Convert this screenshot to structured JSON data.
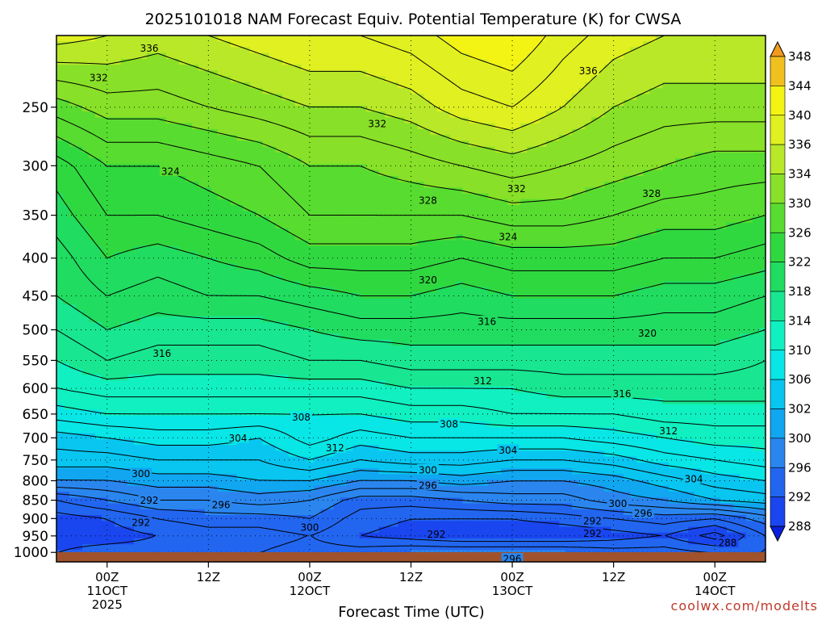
{
  "chart_data": {
    "type": "heatmap",
    "title": "2025101018 NAM Forecast Equiv. Potential Temperature (K) for CWSA",
    "xlabel": "Forecast Time (UTC)",
    "ylabel": "",
    "credit": "coolwx.com/modelts",
    "x_ticks": [
      {
        "hour": 6,
        "line1": "00Z",
        "line2": "11OCT",
        "line3": "2025"
      },
      {
        "hour": 18,
        "line1": "12Z",
        "line2": "",
        "line3": ""
      },
      {
        "hour": 30,
        "line1": "00Z",
        "line2": "12OCT",
        "line3": ""
      },
      {
        "hour": 42,
        "line1": "12Z",
        "line2": "",
        "line3": ""
      },
      {
        "hour": 54,
        "line1": "00Z",
        "line2": "13OCT",
        "line3": ""
      },
      {
        "hour": 66,
        "line1": "12Z",
        "line2": "",
        "line3": ""
      },
      {
        "hour": 78,
        "line1": "00Z",
        "line2": "14OCT",
        "line3": ""
      }
    ],
    "xlim": [
      0,
      84
    ],
    "y_ticks": [
      {
        "p": 250,
        "label": "250"
      },
      {
        "p": 300,
        "label": "300"
      },
      {
        "p": 350,
        "label": "350"
      },
      {
        "p": 400,
        "label": "400"
      },
      {
        "p": 450,
        "label": "450"
      },
      {
        "p": 500,
        "label": "500"
      },
      {
        "p": 550,
        "label": "550"
      },
      {
        "p": 600,
        "label": "600"
      },
      {
        "p": 650,
        "label": "650"
      },
      {
        "p": 700,
        "label": "700"
      },
      {
        "p": 750,
        "label": "750"
      },
      {
        "p": 800,
        "label": "800"
      },
      {
        "p": 850,
        "label": "850"
      },
      {
        "p": 900,
        "label": "900"
      },
      {
        "p": 950,
        "label": "950"
      },
      {
        "p": 1000,
        "label": "1000"
      }
    ],
    "ylim": [
      200,
      1030
    ],
    "y_scale": "log-pressure",
    "grid": "dotted",
    "colorbar": {
      "levels": [
        288,
        292,
        296,
        300,
        302,
        306,
        310,
        314,
        318,
        322,
        326,
        330,
        334,
        336,
        340,
        344,
        348
      ],
      "colors": [
        "#0a1ee0",
        "#1a46ef",
        "#2266f0",
        "#2a86ee",
        "#10a6f0",
        "#08c6f0",
        "#08e6e6",
        "#10f0c0",
        "#18e690",
        "#20dc60",
        "#30d840",
        "#58dc30",
        "#88e028",
        "#b8e828",
        "#e0f020",
        "#f4f414",
        "#f0c020",
        "#f09a20"
      ]
    },
    "profile_pressures": [
      200,
      250,
      300,
      350,
      400,
      450,
      500,
      550,
      600,
      650,
      700,
      750,
      800,
      850,
      900,
      950,
      1000
    ],
    "profile_hours": [
      0,
      6,
      12,
      18,
      24,
      30,
      36,
      42,
      48,
      54,
      60,
      66,
      72,
      78,
      84
    ],
    "theta_e": [
      [
        337,
        336,
        335,
        336,
        337,
        338,
        338,
        339,
        341,
        342,
        339,
        337,
        336,
        336,
        336
      ],
      [
        329,
        331,
        331,
        332,
        333,
        334,
        334,
        335,
        337,
        338,
        336,
        334,
        333,
        333,
        333
      ],
      [
        323,
        326,
        326,
        327,
        328,
        330,
        330,
        331,
        332,
        333,
        332,
        331,
        330,
        329,
        329
      ],
      [
        321,
        324,
        324,
        325,
        326,
        328,
        328,
        328,
        328,
        329,
        329,
        328,
        327,
        327,
        326
      ],
      [
        319,
        322,
        321,
        322,
        323,
        325,
        325,
        325,
        324,
        325,
        325,
        325,
        324,
        324,
        323
      ],
      [
        318,
        320,
        319,
        320,
        320,
        321,
        322,
        322,
        321,
        322,
        322,
        322,
        321,
        321,
        320
      ],
      [
        316,
        318,
        317,
        317,
        317,
        318,
        319,
        319,
        319,
        319,
        319,
        319,
        319,
        319,
        318
      ],
      [
        314,
        316,
        315,
        315,
        315,
        316,
        316,
        317,
        317,
        317,
        317,
        317,
        317,
        317,
        316
      ],
      [
        312,
        313,
        313,
        313,
        313,
        313,
        313,
        314,
        314,
        314,
        315,
        315,
        315,
        315,
        315
      ],
      [
        309,
        310,
        310,
        310,
        310,
        310,
        310,
        311,
        311,
        312,
        312,
        312,
        313,
        313,
        313
      ],
      [
        305,
        306,
        307,
        307,
        306,
        309,
        307,
        308,
        308,
        308,
        308,
        309,
        310,
        311,
        311
      ],
      [
        303,
        303,
        304,
        304,
        304,
        306,
        304,
        305,
        305,
        304,
        304,
        305,
        307,
        308,
        309
      ],
      [
        300,
        300,
        301,
        301,
        302,
        302,
        300,
        300,
        301,
        300,
        300,
        301,
        303,
        305,
        306
      ],
      [
        294,
        296,
        298,
        298,
        299,
        298,
        295,
        295,
        296,
        297,
        297,
        299,
        300,
        302,
        303
      ],
      [
        291,
        292,
        294,
        295,
        295,
        296,
        293,
        292,
        292,
        292,
        293,
        294,
        295,
        294,
        297
      ],
      [
        291,
        291,
        292,
        293,
        293,
        294,
        292,
        291,
        290,
        290,
        290,
        291,
        292,
        289,
        294
      ],
      [
        292,
        293,
        293,
        294,
        294,
        295,
        295,
        296,
        296,
        296,
        296,
        295,
        295,
        294,
        294
      ]
    ],
    "contour_labels": [
      {
        "text": "336",
        "hour": 11,
        "p": 208
      },
      {
        "text": "332",
        "hour": 5,
        "p": 228
      },
      {
        "text": "336",
        "hour": 63,
        "p": 223
      },
      {
        "text": "332",
        "hour": 38,
        "p": 263
      },
      {
        "text": "324",
        "hour": 13.5,
        "p": 305
      },
      {
        "text": "332",
        "hour": 54.5,
        "p": 322
      },
      {
        "text": "328",
        "hour": 44,
        "p": 334
      },
      {
        "text": "328",
        "hour": 70.5,
        "p": 327
      },
      {
        "text": "324",
        "hour": 53.5,
        "p": 374
      },
      {
        "text": "320",
        "hour": 44,
        "p": 428
      },
      {
        "text": "316",
        "hour": 12.5,
        "p": 538
      },
      {
        "text": "316",
        "hour": 51,
        "p": 487
      },
      {
        "text": "320",
        "hour": 70,
        "p": 505
      },
      {
        "text": "312",
        "hour": 50.5,
        "p": 586
      },
      {
        "text": "316",
        "hour": 67,
        "p": 610
      },
      {
        "text": "308",
        "hour": 29,
        "p": 656
      },
      {
        "text": "308",
        "hour": 46.5,
        "p": 670
      },
      {
        "text": "312",
        "hour": 72.5,
        "p": 685
      },
      {
        "text": "312",
        "hour": 33,
        "p": 722
      },
      {
        "text": "304",
        "hour": 21.5,
        "p": 700
      },
      {
        "text": "304",
        "hour": 53.5,
        "p": 727
      },
      {
        "text": "300",
        "hour": 10,
        "p": 782
      },
      {
        "text": "300",
        "hour": 44,
        "p": 773
      },
      {
        "text": "296",
        "hour": 44,
        "p": 811
      },
      {
        "text": "304",
        "hour": 75.5,
        "p": 795
      },
      {
        "text": "292",
        "hour": 11,
        "p": 850
      },
      {
        "text": "296",
        "hour": 19.5,
        "p": 862
      },
      {
        "text": "300",
        "hour": 66.5,
        "p": 858
      },
      {
        "text": "296",
        "hour": 69.5,
        "p": 885
      },
      {
        "text": "292",
        "hour": 10,
        "p": 911
      },
      {
        "text": "300",
        "hour": 30,
        "p": 924
      },
      {
        "text": "292",
        "hour": 63.5,
        "p": 906
      },
      {
        "text": "292",
        "hour": 45,
        "p": 945
      },
      {
        "text": "292",
        "hour": 63.5,
        "p": 942
      },
      {
        "text": "288",
        "hour": 79.5,
        "p": 970
      },
      {
        "text": "296",
        "hour": 54,
        "p": 1020
      }
    ]
  }
}
